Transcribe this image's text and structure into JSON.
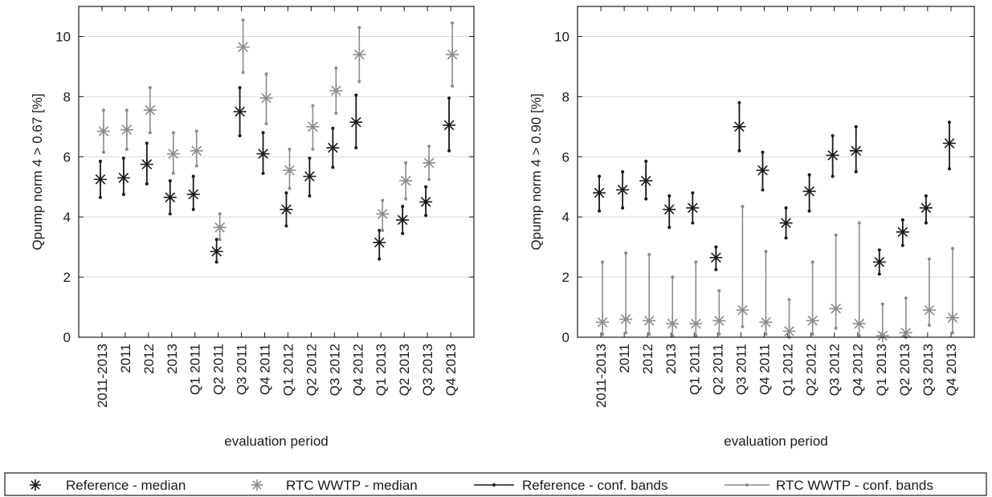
{
  "colors": {
    "reference": "#1a1a1a",
    "rtc": "#8c8c8c",
    "grid": "#d9d9d9",
    "axis": "#1a1a1a"
  },
  "legend": {
    "items": [
      {
        "marker": "star",
        "kind": "reference",
        "label": "Reference - median"
      },
      {
        "marker": "star",
        "kind": "rtc",
        "label": "RTC WWTP - median"
      },
      {
        "marker": "line",
        "kind": "reference",
        "label": "Reference - conf. bands"
      },
      {
        "marker": "line",
        "kind": "rtc",
        "label": "RTC WWTP - conf. bands"
      }
    ]
  },
  "chart_data": [
    {
      "type": "scatter",
      "title": "",
      "xlabel": "evaluation period",
      "ylabel": "Qpump norm 4 > 0.67 [%]",
      "ylim": [
        0,
        11
      ],
      "yticks": [
        0,
        2,
        4,
        6,
        8,
        10
      ],
      "grid": true,
      "categories": [
        "2011-2013",
        "2011",
        "2012",
        "2013",
        "Q1 2011",
        "Q2 2011",
        "Q3 2011",
        "Q4 2011",
        "Q1 2012",
        "Q2 2012",
        "Q3 2012",
        "Q4 2012",
        "Q1 2013",
        "Q2 2013",
        "Q3 2013",
        "Q4 2013"
      ],
      "series": [
        {
          "name": "Reference - median",
          "bands": "Reference - conf. bands",
          "kind": "reference",
          "median": [
            5.25,
            5.3,
            5.75,
            4.65,
            4.75,
            2.85,
            7.5,
            6.1,
            4.25,
            5.35,
            6.3,
            7.15,
            3.15,
            3.9,
            4.5,
            7.05
          ],
          "lower": [
            4.65,
            4.75,
            5.1,
            4.1,
            4.25,
            2.5,
            6.7,
            5.45,
            3.7,
            4.7,
            5.65,
            6.3,
            2.6,
            3.45,
            4.05,
            6.2
          ],
          "upper": [
            5.85,
            5.95,
            6.45,
            5.2,
            5.35,
            3.25,
            8.3,
            6.8,
            4.8,
            5.95,
            6.95,
            8.05,
            3.55,
            4.35,
            5.0,
            7.95
          ]
        },
        {
          "name": "RTC WWTP - median",
          "bands": "RTC WWTP - conf. bands",
          "kind": "rtc",
          "median": [
            6.85,
            6.9,
            7.55,
            6.1,
            6.2,
            3.65,
            9.65,
            7.95,
            5.55,
            7.0,
            8.2,
            9.4,
            4.1,
            5.2,
            5.8,
            9.4
          ],
          "lower": [
            6.15,
            6.25,
            6.8,
            5.45,
            5.7,
            3.25,
            8.8,
            7.1,
            4.95,
            6.25,
            7.45,
            8.5,
            3.55,
            4.6,
            5.25,
            8.35
          ],
          "upper": [
            7.55,
            7.55,
            8.3,
            6.8,
            6.85,
            4.1,
            10.55,
            8.75,
            6.25,
            7.7,
            8.95,
            10.3,
            4.55,
            5.8,
            6.35,
            10.45
          ]
        }
      ]
    },
    {
      "type": "scatter",
      "title": "",
      "xlabel": "evaluation period",
      "ylabel": "Qpump norm 4 > 0.90 [%]",
      "ylim": [
        0,
        11
      ],
      "yticks": [
        0,
        2,
        4,
        6,
        8,
        10
      ],
      "grid": true,
      "categories": [
        "2011-2013",
        "2011",
        "2012",
        "2013",
        "Q1 2011",
        "Q2 2011",
        "Q3 2011",
        "Q4 2011",
        "Q1 2012",
        "Q2 2012",
        "Q3 2012",
        "Q4 2012",
        "Q1 2013",
        "Q2 2013",
        "Q3 2013",
        "Q4 2013"
      ],
      "series": [
        {
          "name": "Reference - median",
          "bands": "Reference - conf. bands",
          "kind": "reference",
          "median": [
            4.8,
            4.9,
            5.2,
            4.25,
            4.3,
            2.65,
            7.0,
            5.55,
            3.8,
            4.85,
            6.05,
            6.2,
            2.5,
            3.5,
            4.3,
            6.45
          ],
          "lower": [
            4.2,
            4.3,
            4.6,
            3.65,
            3.8,
            2.25,
            6.2,
            4.9,
            3.3,
            4.2,
            5.35,
            5.5,
            2.1,
            3.05,
            3.8,
            5.6
          ],
          "upper": [
            5.35,
            5.5,
            5.85,
            4.7,
            4.8,
            3.0,
            7.8,
            6.15,
            4.3,
            5.4,
            6.7,
            7.0,
            2.9,
            3.9,
            4.7,
            7.15
          ]
        },
        {
          "name": "RTC WWTP - median",
          "bands": "RTC WWTP - conf. bands",
          "kind": "rtc",
          "median": [
            0.5,
            0.6,
            0.55,
            0.45,
            0.45,
            0.55,
            0.9,
            0.5,
            0.2,
            0.55,
            0.95,
            0.45,
            0.05,
            0.15,
            0.9,
            0.65
          ],
          "lower": [
            0.1,
            0.15,
            0.1,
            0.05,
            0.05,
            0.1,
            0.35,
            0.1,
            0.0,
            0.1,
            0.3,
            0.05,
            0.0,
            0.0,
            0.4,
            0.15
          ],
          "upper": [
            2.5,
            2.8,
            2.75,
            2.0,
            2.5,
            1.55,
            4.35,
            2.85,
            1.25,
            2.5,
            3.4,
            3.8,
            1.1,
            1.3,
            2.6,
            2.95
          ]
        }
      ]
    }
  ]
}
